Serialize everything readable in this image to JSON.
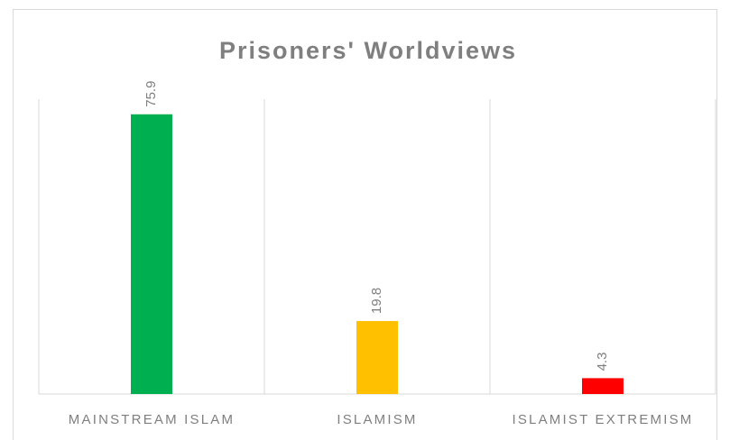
{
  "chart_data": {
    "type": "bar",
    "title": "Prisoners' Worldviews",
    "categories": [
      "MAINSTREAM ISLAM",
      "ISLAMISM",
      "ISLAMIST EXTREMISM"
    ],
    "values": [
      75.9,
      19.8,
      4.3
    ],
    "colors": [
      "#00b050",
      "#ffc000",
      "#ff0000"
    ],
    "ylim": [
      0,
      80
    ]
  }
}
